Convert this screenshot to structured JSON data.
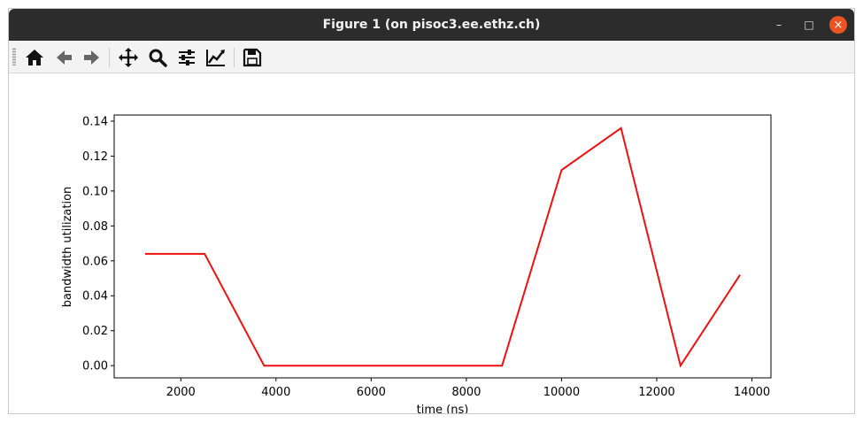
{
  "window": {
    "title": "Figure 1 (on pisoc3.ee.ethz.ch)",
    "controls": {
      "minimize": "–",
      "maximize": "□",
      "close": "×"
    },
    "close_color": "#e95420"
  },
  "toolbar": {
    "buttons": [
      {
        "name": "home",
        "icon": "home-icon"
      },
      {
        "name": "back",
        "icon": "arrow-left-icon"
      },
      {
        "name": "forward",
        "icon": "arrow-right-icon"
      },
      {
        "name": "pan",
        "icon": "move-icon"
      },
      {
        "name": "zoom",
        "icon": "magnifier-icon"
      },
      {
        "name": "configure-subplots",
        "icon": "sliders-icon"
      },
      {
        "name": "edit-axis",
        "icon": "line-chart-icon"
      },
      {
        "name": "save",
        "icon": "floppy-disk-icon"
      }
    ]
  },
  "chart_data": {
    "type": "line",
    "title": "",
    "xlabel": "time (ns)",
    "ylabel": "bandwidth utilization",
    "xlim": [
      600,
      14400
    ],
    "ylim": [
      -0.007,
      0.1435
    ],
    "xticks": [
      2000,
      4000,
      6000,
      8000,
      10000,
      12000,
      14000
    ],
    "xtick_labels": [
      "2000",
      "4000",
      "6000",
      "8000",
      "10000",
      "12000",
      "14000"
    ],
    "yticks": [
      0.0,
      0.02,
      0.04,
      0.06,
      0.08,
      0.1,
      0.12,
      0.14
    ],
    "ytick_labels": [
      "0.00",
      "0.02",
      "0.04",
      "0.06",
      "0.08",
      "0.10",
      "0.12",
      "0.14"
    ],
    "grid": false,
    "series": [
      {
        "color": "#ee1111",
        "x": [
          1250,
          2500,
          3750,
          5000,
          6250,
          7500,
          8750,
          10000,
          11250,
          12500,
          13750
        ],
        "y": [
          0.064,
          0.064,
          0.0,
          0.0,
          0.0,
          0.0,
          0.0,
          0.112,
          0.136,
          0.0,
          0.052
        ]
      }
    ]
  }
}
